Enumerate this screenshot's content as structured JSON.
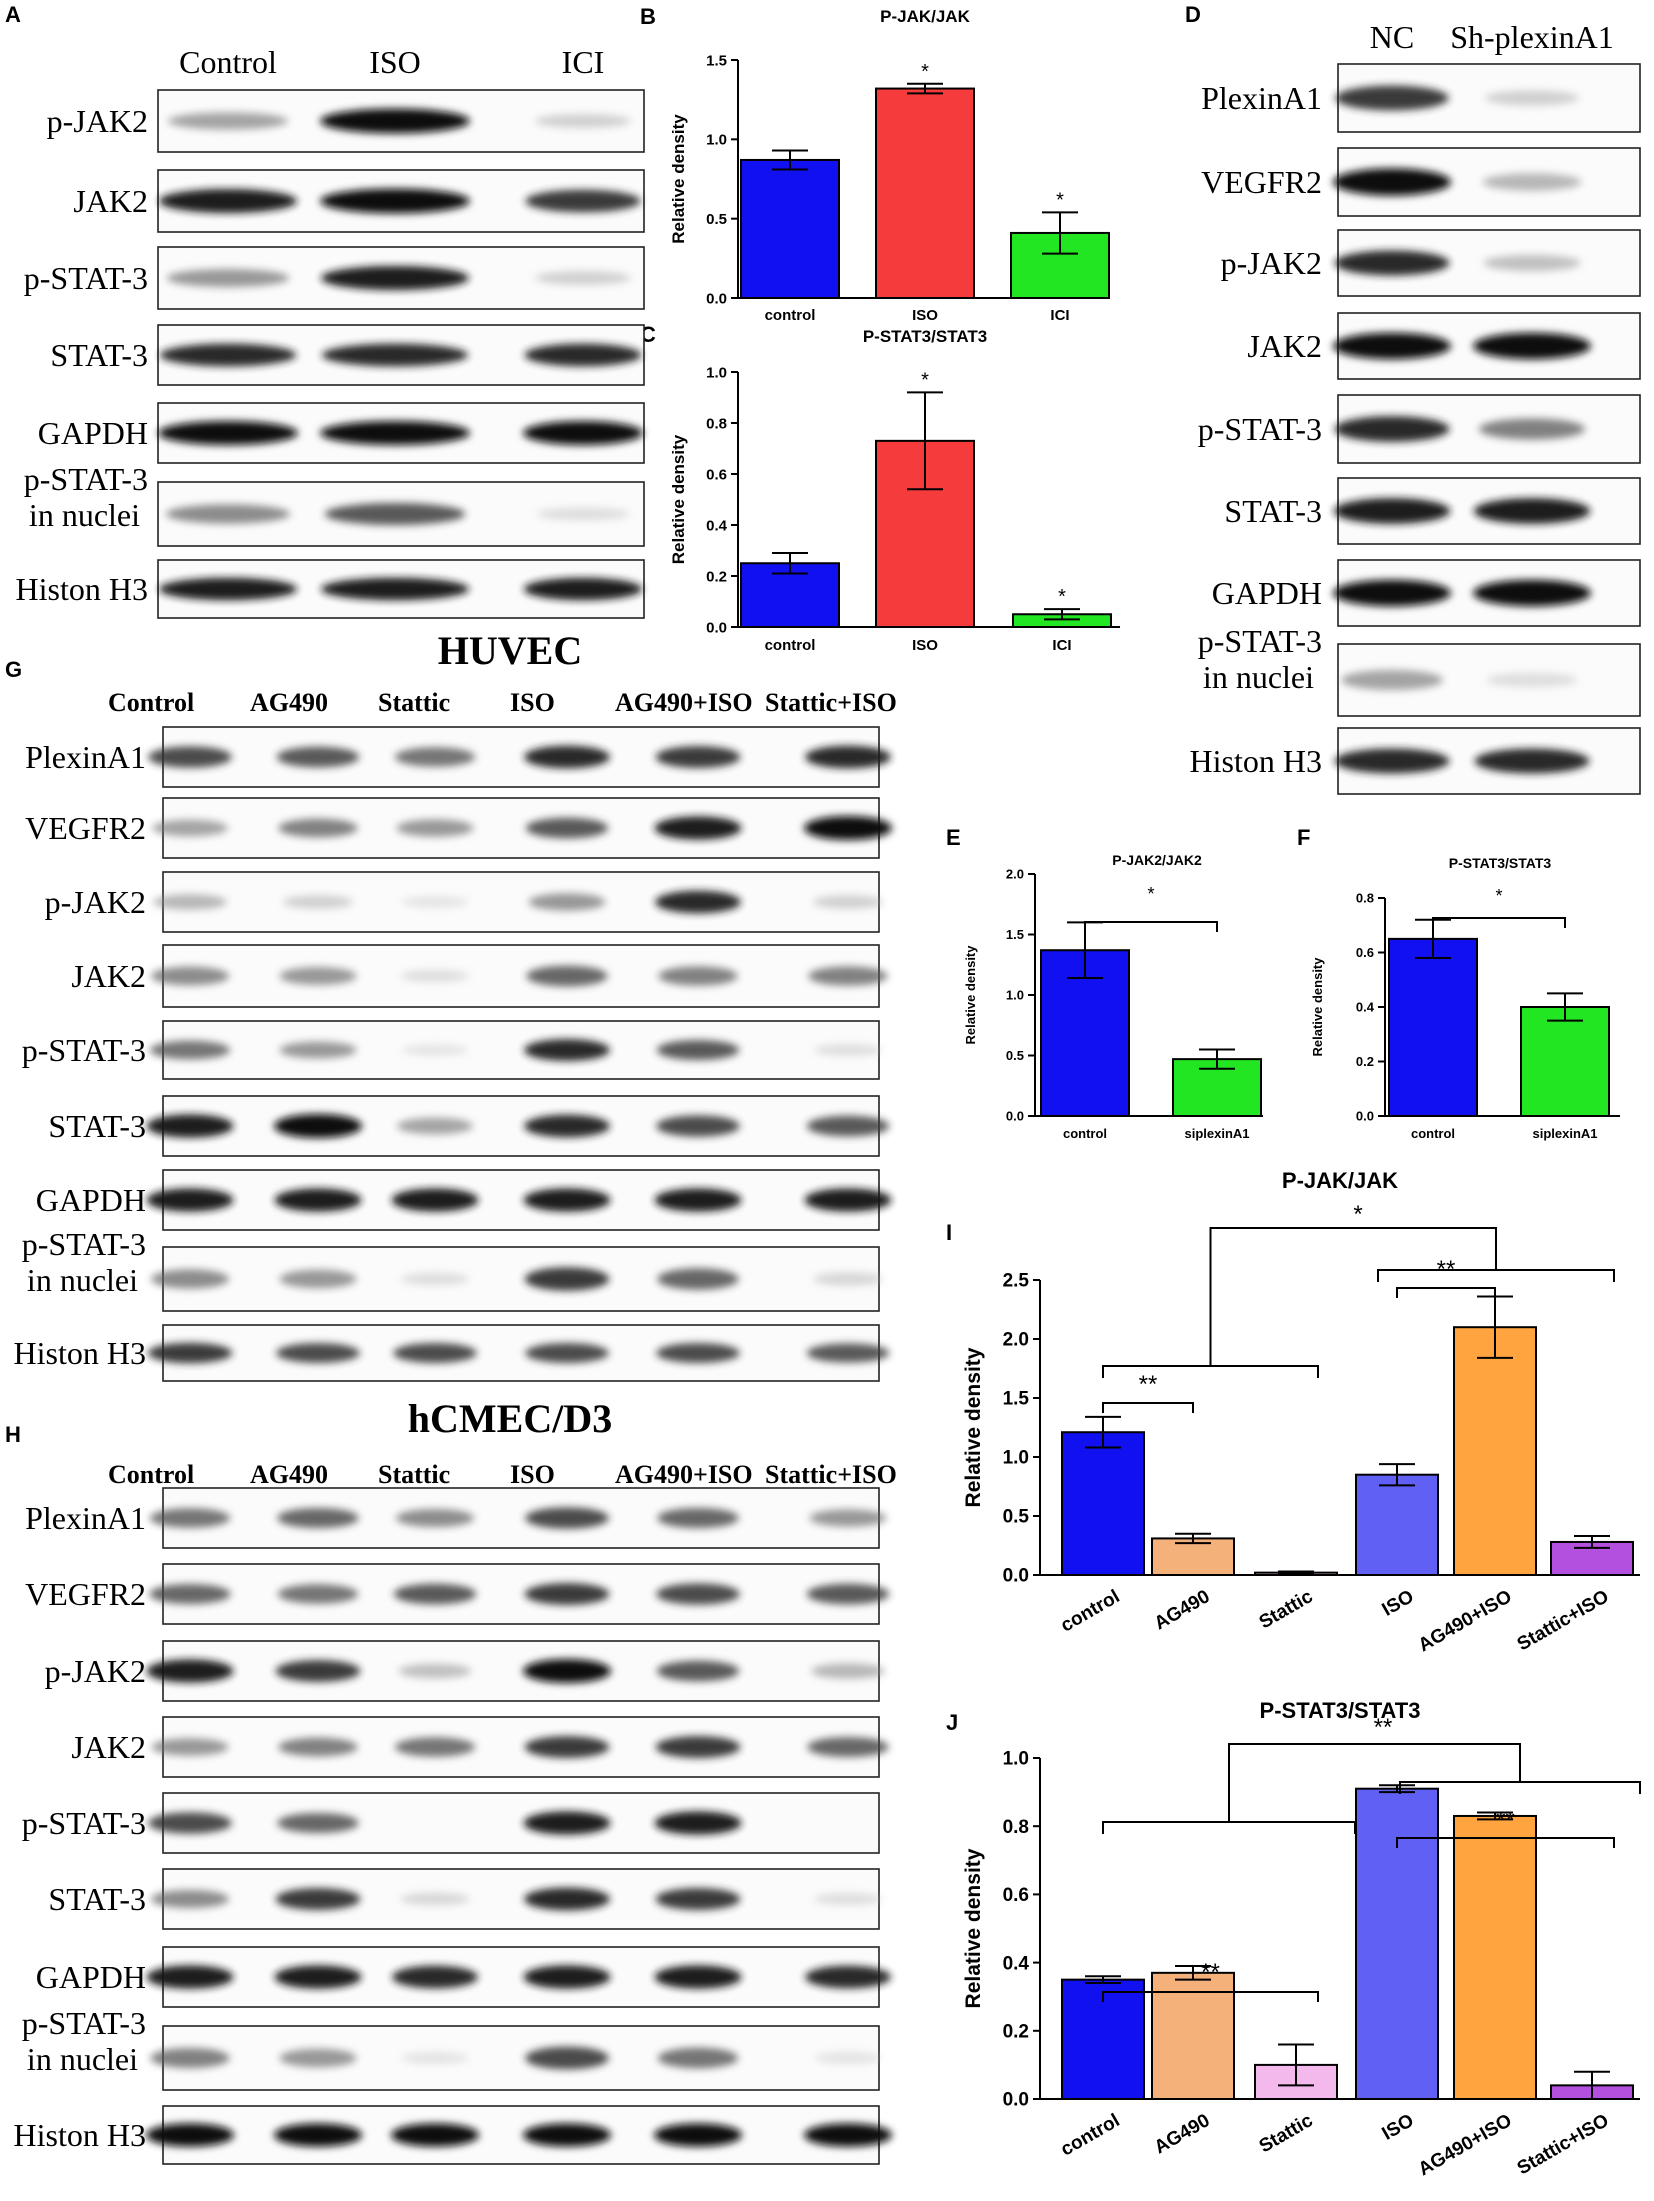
{
  "panel_letters": {
    "A": "A",
    "B": "B",
    "C": "C",
    "D": "D",
    "E": "E",
    "F": "F",
    "G": "G",
    "H": "H",
    "I": "I",
    "J": "J"
  },
  "blots": {
    "A": {
      "lanes": [
        "Control",
        "ISO",
        "ICI"
      ],
      "rows": [
        {
          "label": [
            "p-JAK2"
          ],
          "bands": [
            0.45,
            1.0,
            0.2
          ]
        },
        {
          "label": [
            "JAK2"
          ],
          "bands": [
            0.95,
            1.0,
            0.85
          ]
        },
        {
          "label": [
            "p-STAT-3"
          ],
          "bands": [
            0.5,
            0.95,
            0.2
          ]
        },
        {
          "label": [
            "STAT-3"
          ],
          "bands": [
            0.9,
            0.9,
            0.9
          ]
        },
        {
          "label": [
            "GAPDH"
          ],
          "bands": [
            1.0,
            1.0,
            1.0
          ]
        },
        {
          "label": [
            "p-STAT-3",
            "in nuclei"
          ],
          "bands": [
            0.55,
            0.75,
            0.1
          ]
        },
        {
          "label": [
            "Histon H3"
          ],
          "bands": [
            0.95,
            0.95,
            0.95
          ]
        }
      ]
    },
    "D": {
      "lanes": [
        "NC",
        "Sh-plexinA1"
      ],
      "rows": [
        {
          "label": [
            "PlexinA1"
          ],
          "bands": [
            0.85,
            0.2
          ]
        },
        {
          "label": [
            "VEGFR2"
          ],
          "bands": [
            1.0,
            0.35
          ]
        },
        {
          "label": [
            "p-JAK2"
          ],
          "bands": [
            0.9,
            0.3
          ]
        },
        {
          "label": [
            "JAK2"
          ],
          "bands": [
            1.0,
            1.0
          ]
        },
        {
          "label": [
            "p-STAT-3"
          ],
          "bands": [
            0.9,
            0.6
          ]
        },
        {
          "label": [
            "STAT-3"
          ],
          "bands": [
            0.95,
            0.95
          ]
        },
        {
          "label": [
            "GAPDH"
          ],
          "bands": [
            1.0,
            1.0
          ]
        },
        {
          "label": [
            "p-STAT-3",
            "in nuclei"
          ],
          "bands": [
            0.45,
            0.1
          ]
        },
        {
          "label": [
            "Histon H3"
          ],
          "bands": [
            0.9,
            0.9
          ]
        }
      ]
    },
    "G": {
      "title": "HUVEC",
      "lanes": [
        "Control",
        "AG490",
        "Stattic",
        "ISO",
        "AG490+ISO",
        "Stattic+ISO"
      ],
      "rows": [
        {
          "label": [
            "PlexinA1"
          ],
          "bands": [
            0.8,
            0.75,
            0.65,
            0.9,
            0.85,
            0.9
          ]
        },
        {
          "label": [
            "VEGFR2"
          ],
          "bands": [
            0.45,
            0.6,
            0.5,
            0.75,
            0.95,
            1.0
          ]
        },
        {
          "label": [
            "p-JAK2"
          ],
          "bands": [
            0.35,
            0.2,
            0.05,
            0.5,
            0.9,
            0.2
          ]
        },
        {
          "label": [
            "JAK2"
          ],
          "bands": [
            0.55,
            0.5,
            0.1,
            0.7,
            0.6,
            0.6
          ]
        },
        {
          "label": [
            "p-STAT-3"
          ],
          "bands": [
            0.65,
            0.5,
            0.05,
            0.9,
            0.75,
            0.1
          ]
        },
        {
          "label": [
            "STAT-3"
          ],
          "bands": [
            0.95,
            1.0,
            0.45,
            0.9,
            0.8,
            0.75
          ]
        },
        {
          "label": [
            "GAPDH"
          ],
          "bands": [
            0.95,
            0.95,
            0.95,
            0.95,
            0.95,
            0.95
          ]
        },
        {
          "label": [
            "p-STAT-3",
            "in nuclei"
          ],
          "bands": [
            0.55,
            0.5,
            0.1,
            0.85,
            0.7,
            0.15
          ]
        },
        {
          "label": [
            "Histon H3"
          ],
          "bands": [
            0.85,
            0.8,
            0.8,
            0.8,
            0.8,
            0.75
          ]
        }
      ]
    },
    "H": {
      "title": "hCMEC/D3",
      "lanes": [
        "Control",
        "AG490",
        "Stattic",
        "ISO",
        "AG490+ISO",
        "Stattic+ISO"
      ],
      "rows": [
        {
          "label": [
            "PlexinA1"
          ],
          "bands": [
            0.65,
            0.7,
            0.55,
            0.8,
            0.7,
            0.5
          ]
        },
        {
          "label": [
            "VEGFR2"
          ],
          "bands": [
            0.7,
            0.65,
            0.75,
            0.85,
            0.8,
            0.75
          ]
        },
        {
          "label": [
            "p-JAK2"
          ],
          "bands": [
            0.95,
            0.85,
            0.3,
            1.0,
            0.75,
            0.35
          ]
        },
        {
          "label": [
            "JAK2"
          ],
          "bands": [
            0.5,
            0.6,
            0.65,
            0.85,
            0.85,
            0.7
          ]
        },
        {
          "label": [
            "p-STAT-3"
          ],
          "bands": [
            0.8,
            0.7,
            0.0,
            0.95,
            0.95,
            0.0
          ]
        },
        {
          "label": [
            "STAT-3"
          ],
          "bands": [
            0.55,
            0.85,
            0.15,
            0.9,
            0.85,
            0.1
          ]
        },
        {
          "label": [
            "GAPDH"
          ],
          "bands": [
            0.95,
            0.95,
            0.9,
            0.95,
            0.95,
            0.9
          ]
        },
        {
          "label": [
            "p-STAT-3",
            "in nuclei"
          ],
          "bands": [
            0.6,
            0.5,
            0.05,
            0.8,
            0.65,
            0.05
          ]
        },
        {
          "label": [
            "Histon H3"
          ],
          "bands": [
            1.0,
            1.0,
            1.0,
            1.0,
            1.0,
            1.0
          ]
        }
      ]
    }
  },
  "chart_data": [
    {
      "id": "B",
      "type": "bar",
      "title": "P-JAK/JAK",
      "ylabel": "Relative density",
      "categories": [
        "control",
        "ISO",
        "ICI"
      ],
      "values": [
        0.87,
        1.32,
        0.41
      ],
      "errors": [
        0.06,
        0.03,
        0.13
      ],
      "ylim": [
        0,
        1.5
      ],
      "yticks": [
        "0.0",
        "0.5",
        "1.0",
        "1.5"
      ],
      "colors": [
        "#1010f0",
        "#f53b3b",
        "#22e622"
      ],
      "stars": [
        "",
        "*",
        "*"
      ],
      "brackets": []
    },
    {
      "id": "C",
      "type": "bar",
      "title": "P-STAT3/STAT3",
      "ylabel": "Relative density",
      "categories": [
        "control",
        "ISO",
        "ICI"
      ],
      "values": [
        0.25,
        0.73,
        0.05
      ],
      "errors": [
        0.04,
        0.19,
        0.02
      ],
      "ylim": [
        0,
        1.0
      ],
      "yticks": [
        "0.0",
        "0.2",
        "0.4",
        "0.6",
        "0.8",
        "1.0"
      ],
      "colors": [
        "#1010f0",
        "#f53b3b",
        "#22e622"
      ],
      "stars": [
        "",
        "*",
        "*"
      ],
      "brackets": []
    },
    {
      "id": "E",
      "type": "bar",
      "title": "P-JAK2/JAK2",
      "ylabel": "Relative density",
      "categories": [
        "control",
        "siplexinA1"
      ],
      "values": [
        1.37,
        0.47
      ],
      "errors": [
        0.23,
        0.08
      ],
      "ylim": [
        0,
        2.0
      ],
      "yticks": [
        "0.0",
        "0.5",
        "1.0",
        "1.5",
        "2.0"
      ],
      "colors": [
        "#1010f0",
        "#22e622"
      ],
      "stars": [
        "",
        ""
      ],
      "brackets": [
        {
          "label": "*"
        }
      ]
    },
    {
      "id": "F",
      "type": "bar",
      "title": "P-STAT3/STAT3",
      "ylabel": "Relative density",
      "categories": [
        "control",
        "siplexinA1"
      ],
      "values": [
        0.65,
        0.4
      ],
      "errors": [
        0.07,
        0.05
      ],
      "ylim": [
        0,
        0.8
      ],
      "yticks": [
        "0.0",
        "0.2",
        "0.4",
        "0.6",
        "0.8"
      ],
      "colors": [
        "#1010f0",
        "#22e622"
      ],
      "stars": [
        "",
        ""
      ],
      "brackets": [
        {
          "label": "*"
        }
      ]
    },
    {
      "id": "I",
      "type": "bar",
      "title": "P-JAK/JAK",
      "ylabel": "Relative density",
      "categories": [
        "control",
        "AG490",
        "Stattic",
        "ISO",
        "AG490+ISO",
        "Stattic+ISO"
      ],
      "values": [
        1.21,
        0.31,
        0.02,
        0.85,
        2.1,
        0.28
      ],
      "errors": [
        0.13,
        0.04,
        0.01,
        0.09,
        0.26,
        0.05
      ],
      "ylim": [
        0,
        2.5
      ],
      "yticks": [
        "0.0",
        "0.5",
        "1.0",
        "1.5",
        "2.0",
        "2.5"
      ],
      "colors": [
        "#1010f0",
        "#f5b17a",
        "#f3b8ec",
        "#6060f5",
        "#ffa43f",
        "#b450e0"
      ],
      "stars": [
        "",
        "",
        "",
        "",
        "",
        ""
      ],
      "brackets": [
        {
          "label": "**"
        },
        {
          "label": "**"
        },
        {
          "label": "*"
        }
      ]
    },
    {
      "id": "J",
      "type": "bar",
      "title": "P-STAT3/STAT3",
      "ylabel": "Relative density",
      "categories": [
        "control",
        "AG490",
        "Stattic",
        "ISO",
        "AG490+ISO",
        "Stattic+ISO"
      ],
      "values": [
        0.35,
        0.37,
        0.1,
        0.91,
        0.83,
        0.04
      ],
      "errors": [
        0.01,
        0.02,
        0.06,
        0.01,
        0.01,
        0.04
      ],
      "ylim": [
        0,
        1.0
      ],
      "yticks": [
        "0.0",
        "0.2",
        "0.4",
        "0.6",
        "0.8",
        "1.0"
      ],
      "colors": [
        "#1010f0",
        "#f5b17a",
        "#f3b8ec",
        "#6060f5",
        "#ffa43f",
        "#b450e0"
      ],
      "stars": [
        "",
        "",
        "",
        "",
        "",
        ""
      ],
      "brackets": [
        {
          "label": "**"
        },
        {
          "label": "**"
        },
        {
          "label": "**"
        }
      ]
    }
  ]
}
